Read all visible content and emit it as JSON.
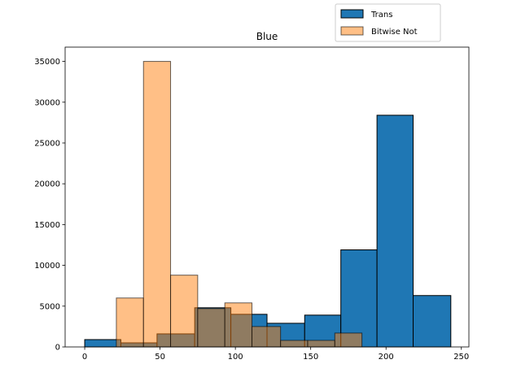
{
  "chart_data": {
    "type": "bar",
    "title": "Blue",
    "xlabel": "",
    "ylabel": "",
    "xlim": [
      -13,
      255
    ],
    "ylim": [
      0,
      36750
    ],
    "xticks": [
      0,
      50,
      100,
      150,
      200,
      250
    ],
    "yticks": [
      0,
      5000,
      10000,
      15000,
      20000,
      25000,
      30000,
      35000
    ],
    "grid": false,
    "legend": {
      "placement": "top-right"
    },
    "series": [
      {
        "name": "Trans",
        "color": "#1f77b4",
        "edge_color": "#000000",
        "opacity": 1.0,
        "bins": [
          {
            "x0": 0,
            "x1": 24,
            "value": 900
          },
          {
            "x0": 24,
            "x1": 48,
            "value": 500
          },
          {
            "x0": 48,
            "x1": 73,
            "value": 1600
          },
          {
            "x0": 73,
            "x1": 97,
            "value": 4800
          },
          {
            "x0": 97,
            "x1": 121,
            "value": 4000
          },
          {
            "x0": 121,
            "x1": 146,
            "value": 2900
          },
          {
            "x0": 146,
            "x1": 170,
            "value": 3900
          },
          {
            "x0": 170,
            "x1": 194,
            "value": 11900
          },
          {
            "x0": 194,
            "x1": 218,
            "value": 28400
          },
          {
            "x0": 218,
            "x1": 243,
            "value": 6300
          }
        ]
      },
      {
        "name": "Bitwise Not",
        "color": "#ff7f0e",
        "edge_color": "#000000",
        "opacity": 0.5,
        "bins": [
          {
            "x0": 21,
            "x1": 39,
            "value": 6000
          },
          {
            "x0": 39,
            "x1": 57,
            "value": 35000
          },
          {
            "x0": 57,
            "x1": 75,
            "value": 8800
          },
          {
            "x0": 75,
            "x1": 93,
            "value": 4700
          },
          {
            "x0": 93,
            "x1": 111,
            "value": 5400
          },
          {
            "x0": 111,
            "x1": 130,
            "value": 2500
          },
          {
            "x0": 130,
            "x1": 148,
            "value": 800
          },
          {
            "x0": 148,
            "x1": 166,
            "value": 800
          },
          {
            "x0": 166,
            "x1": 184,
            "value": 1700
          }
        ]
      }
    ]
  }
}
